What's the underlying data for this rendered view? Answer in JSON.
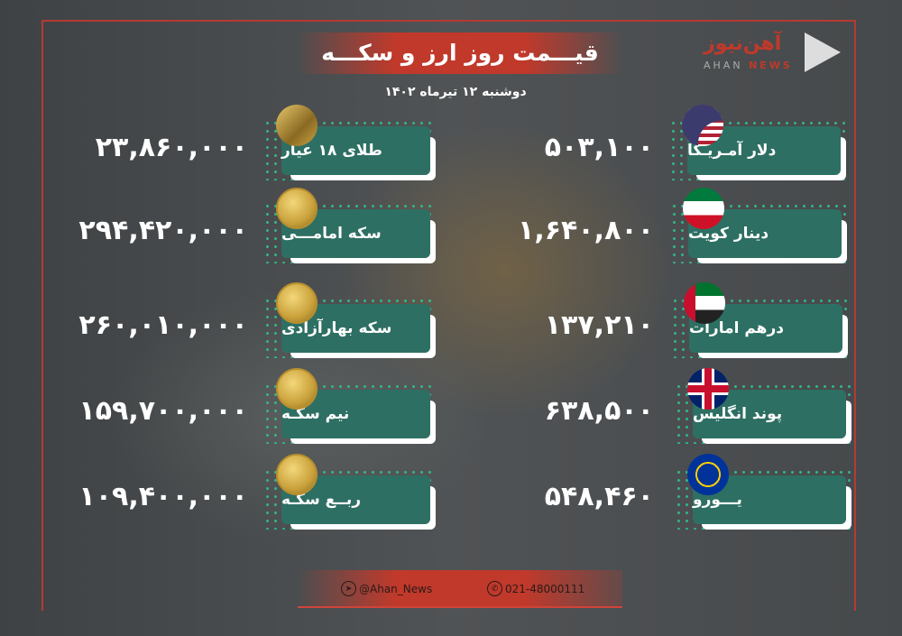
{
  "header": {
    "title": "قیـــمت روز ارز و سکـــه",
    "date": "دوشنبه ۱۲ تیرماه ۱۴۰۲"
  },
  "logo": {
    "fa": "آهن‌نیوز",
    "en_a": "AHAN",
    "en_b": "NEWS"
  },
  "gold": [
    {
      "label": "طلای ۱۸ عیار",
      "value": "۲۳,۸۶۰,۰۰۰",
      "icon": "gold-bar-icon"
    },
    {
      "label": "سکه امامـــی",
      "value": "۲۹۴,۴۲۰,۰۰۰",
      "icon": "emami-coin-icon"
    },
    {
      "label": "سکه بهارآزادی",
      "value": "۲۶۰,۰۱۰,۰۰۰",
      "icon": "bahar-azadi-coin-icon"
    },
    {
      "label": "نیم سکـه",
      "value": "۱۵۹,۷۰۰,۰۰۰",
      "icon": "half-coin-icon"
    },
    {
      "label": "ربــع سکـه",
      "value": "۱۰۹,۴۰۰,۰۰۰",
      "icon": "quarter-coin-icon"
    }
  ],
  "currency": [
    {
      "label": "دلار آمـریـکا",
      "value": "۵۰۳,۱۰۰",
      "icon": "us-flag-icon"
    },
    {
      "label": "دینار کویت",
      "value": "۱,۶۴۰,۸۰۰",
      "icon": "kuwait-flag-icon"
    },
    {
      "label": "درهم امارات",
      "value": "۱۳۷,۲۱۰",
      "icon": "uae-flag-icon"
    },
    {
      "label": "پوند انگلیس",
      "value": "۶۳۸,۵۰۰",
      "icon": "uk-flag-icon"
    },
    {
      "label": "یـــورو",
      "value": "۵۴۸,۴۶۰",
      "icon": "eu-flag-icon"
    }
  ],
  "footer": {
    "telegram": "@Ahan_News",
    "phone": "021-48000111"
  },
  "colors": {
    "accent": "#c0392b",
    "label_bg": "#2e6f63",
    "dots": "#2fbf8a"
  }
}
